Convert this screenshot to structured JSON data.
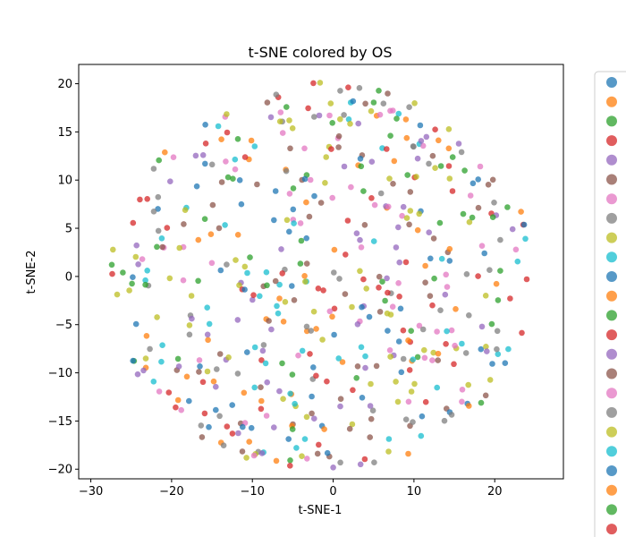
{
  "chart_data": {
    "type": "scatter",
    "title": "t-SNE colored by OS",
    "xlabel": "t-SNE-1",
    "ylabel": "t-SNE-2",
    "xlim": [
      -31.5,
      28.5
    ],
    "ylim": [
      -21.0,
      22.0
    ],
    "xticks": [
      -30,
      -20,
      -10,
      0,
      10,
      20
    ],
    "yticks": [
      -20,
      -15,
      -10,
      -5,
      0,
      5,
      10,
      15,
      20
    ],
    "grid": false,
    "legend_location": "right (outside plot, cropped)",
    "palette": [
      "#1f77b4",
      "#ff7f0e",
      "#2ca02c",
      "#d62728",
      "#9467bd",
      "#8c564b",
      "#e377c2",
      "#7f7f7f",
      "#bcbd22",
      "#17becf"
    ],
    "legend_markers": 25,
    "point_count": 560
  }
}
